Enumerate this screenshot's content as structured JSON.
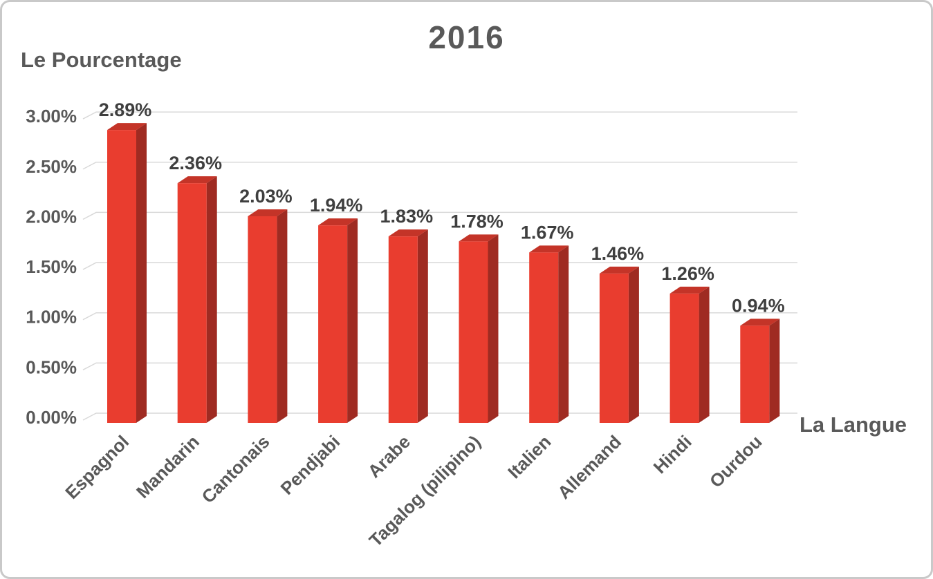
{
  "slide": {
    "title": "2016"
  },
  "chart_data": {
    "type": "bar",
    "style": "3d-column",
    "title": "2016",
    "xlabel": "La Langue",
    "ylabel": "Le Pourcentage",
    "categories": [
      "Espagnol",
      "Mandarin",
      "Cantonais",
      "Pendjabi",
      "Arabe",
      "Tagalog (pilipino)",
      "Italien",
      "Allemand",
      "Hindi",
      "Ourdou"
    ],
    "values": [
      2.89,
      2.36,
      2.03,
      1.94,
      1.83,
      1.78,
      1.67,
      1.46,
      1.26,
      0.94
    ],
    "data_labels": [
      "2.89%",
      "2.36%",
      "2.03%",
      "1.94%",
      "1.83%",
      "1.78%",
      "1.67%",
      "1.46%",
      "1.26%",
      "0.94%"
    ],
    "y_ticks": [
      {
        "value": 0.0,
        "label": "0.00%"
      },
      {
        "value": 0.5,
        "label": "0.50%"
      },
      {
        "value": 1.0,
        "label": "1.00%"
      },
      {
        "value": 1.5,
        "label": "1.50%"
      },
      {
        "value": 2.0,
        "label": "2.00%"
      },
      {
        "value": 2.5,
        "label": "2.50%"
      },
      {
        "value": 3.0,
        "label": "3.00%"
      }
    ],
    "ylim": [
      0,
      3.0
    ],
    "grid": true,
    "legend": false,
    "colors": {
      "bar_front": "#E93D2F",
      "bar_top": "#C43428",
      "bar_side": "#9F2B22",
      "gridline": "#D9D9D9",
      "axis_text": "#595959",
      "data_label_text": "#3F3F3F",
      "title_text": "#595959"
    }
  }
}
